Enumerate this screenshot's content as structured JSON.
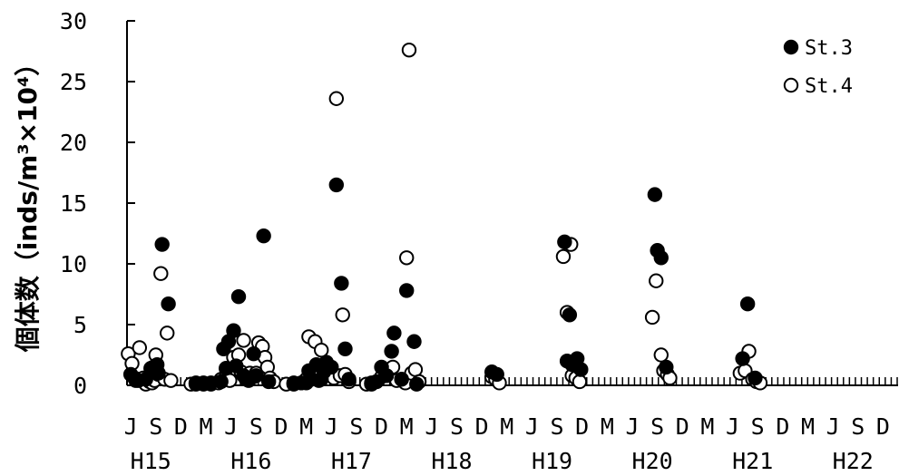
{
  "chart_data": {
    "type": "scatter",
    "ylabel": "個体数（inds/m³×10⁴）",
    "ylim": [
      0,
      30
    ],
    "yticks": [
      0,
      5,
      10,
      15,
      20,
      25,
      30
    ],
    "month_ticks": [
      "J",
      "S",
      "D",
      "M",
      "J",
      "S",
      "D",
      "M",
      "J",
      "S",
      "D",
      "M",
      "J",
      "S",
      "D",
      "M",
      "J",
      "S",
      "D",
      "M",
      "J",
      "S",
      "D",
      "M",
      "J",
      "S",
      "D",
      "M",
      "J",
      "S",
      "D"
    ],
    "year_labels": [
      {
        "label": "H15",
        "month_index": 0.8
      },
      {
        "label": "H16",
        "month_index": 4.8
      },
      {
        "label": "H17",
        "month_index": 8.8
      },
      {
        "label": "H18",
        "month_index": 12.8
      },
      {
        "label": "H19",
        "month_index": 16.8
      },
      {
        "label": "H20",
        "month_index": 20.8
      },
      {
        "label": "H21",
        "month_index": 24.8
      },
      {
        "label": "H22",
        "month_index": 28.8
      }
    ],
    "x_unit": "months since June H15",
    "xlim": [
      -0.15,
      30.6
    ],
    "series": [
      {
        "name": "St.3",
        "marker": "filled",
        "points": [
          [
            0.0,
            0.9
          ],
          [
            0.15,
            0.6
          ],
          [
            0.3,
            0.4
          ],
          [
            0.6,
            0.5
          ],
          [
            0.8,
            1.4
          ],
          [
            0.9,
            1.5
          ],
          [
            1.0,
            1.3
          ],
          [
            1.05,
            1.7
          ],
          [
            1.1,
            1.0
          ],
          [
            1.25,
            11.6
          ],
          [
            1.5,
            6.7
          ],
          [
            2.6,
            0.2
          ],
          [
            2.9,
            0.2
          ],
          [
            3.2,
            0.2
          ],
          [
            3.6,
            0.3
          ],
          [
            3.7,
            3.0
          ],
          [
            3.8,
            1.4
          ],
          [
            3.9,
            3.6
          ],
          [
            4.1,
            4.5
          ],
          [
            4.2,
            1.6
          ],
          [
            4.3,
            7.3
          ],
          [
            4.5,
            0.8
          ],
          [
            4.7,
            0.4
          ],
          [
            4.9,
            2.6
          ],
          [
            5.0,
            0.8
          ],
          [
            5.3,
            12.3
          ],
          [
            5.5,
            0.3
          ],
          [
            6.5,
            0.2
          ],
          [
            6.8,
            0.2
          ],
          [
            7.0,
            0.2
          ],
          [
            7.1,
            1.2
          ],
          [
            7.2,
            0.5
          ],
          [
            7.4,
            1.7
          ],
          [
            7.5,
            0.4
          ],
          [
            7.6,
            0.5
          ],
          [
            7.7,
            1.1
          ],
          [
            7.8,
            1.9
          ],
          [
            8.0,
            1.5
          ],
          [
            8.2,
            16.5
          ],
          [
            8.4,
            8.4
          ],
          [
            8.55,
            3.0
          ],
          [
            8.7,
            0.5
          ],
          [
            9.6,
            0.2
          ],
          [
            9.8,
            0.3
          ],
          [
            10.0,
            1.5
          ],
          [
            10.2,
            0.8
          ],
          [
            10.4,
            2.8
          ],
          [
            10.5,
            4.3
          ],
          [
            10.8,
            0.5
          ],
          [
            11.0,
            7.8
          ],
          [
            11.3,
            3.6
          ],
          [
            11.4,
            0.1
          ],
          [
            14.4,
            1.1
          ],
          [
            14.6,
            0.9
          ],
          [
            17.3,
            11.8
          ],
          [
            17.4,
            2.0
          ],
          [
            17.5,
            5.8
          ],
          [
            17.6,
            1.7
          ],
          [
            17.8,
            2.2
          ],
          [
            17.95,
            1.3
          ],
          [
            20.9,
            15.7
          ],
          [
            21.0,
            11.1
          ],
          [
            21.15,
            10.5
          ],
          [
            21.35,
            1.5
          ],
          [
            24.4,
            2.2
          ],
          [
            24.6,
            6.7
          ],
          [
            24.9,
            0.6
          ]
        ]
      },
      {
        "name": "St.4",
        "marker": "open",
        "points": [
          [
            -0.1,
            2.6
          ],
          [
            0.05,
            1.8
          ],
          [
            0.2,
            0.4
          ],
          [
            0.35,
            3.1
          ],
          [
            0.5,
            0.6
          ],
          [
            0.6,
            0.1
          ],
          [
            0.75,
            0.3
          ],
          [
            0.85,
            0.2
          ],
          [
            0.95,
            0.4
          ],
          [
            1.0,
            2.5
          ],
          [
            1.1,
            0.9
          ],
          [
            1.2,
            9.2
          ],
          [
            1.35,
            0.5
          ],
          [
            1.45,
            4.3
          ],
          [
            1.6,
            0.4
          ],
          [
            2.4,
            0.1
          ],
          [
            2.6,
            0.1
          ],
          [
            2.9,
            0.1
          ],
          [
            3.2,
            0.1
          ],
          [
            3.5,
            0.2
          ],
          [
            3.6,
            0.5
          ],
          [
            3.8,
            0.7
          ],
          [
            3.95,
            0.4
          ],
          [
            4.1,
            2.3
          ],
          [
            4.3,
            2.5
          ],
          [
            4.4,
            1.1
          ],
          [
            4.5,
            3.7
          ],
          [
            4.6,
            0.5
          ],
          [
            4.75,
            1.0
          ],
          [
            4.9,
            0.7
          ],
          [
            5.0,
            1.0
          ],
          [
            5.1,
            3.5
          ],
          [
            5.25,
            3.2
          ],
          [
            5.35,
            2.3
          ],
          [
            5.45,
            1.5
          ],
          [
            5.55,
            0.6
          ],
          [
            5.7,
            0.3
          ],
          [
            6.2,
            0.1
          ],
          [
            6.5,
            0.1
          ],
          [
            6.8,
            0.2
          ],
          [
            7.0,
            0.5
          ],
          [
            7.1,
            4.0
          ],
          [
            7.2,
            0.9
          ],
          [
            7.35,
            3.6
          ],
          [
            7.5,
            1.1
          ],
          [
            7.6,
            2.9
          ],
          [
            7.75,
            1.3
          ],
          [
            7.9,
            0.9
          ],
          [
            8.1,
            0.6
          ],
          [
            8.2,
            23.6
          ],
          [
            8.35,
            0.8
          ],
          [
            8.45,
            5.8
          ],
          [
            8.55,
            0.9
          ],
          [
            8.7,
            0.3
          ],
          [
            9.4,
            0.1
          ],
          [
            9.6,
            0.1
          ],
          [
            9.8,
            0.3
          ],
          [
            10.0,
            0.7
          ],
          [
            10.15,
            1.1
          ],
          [
            10.3,
            1.3
          ],
          [
            10.45,
            1.5
          ],
          [
            10.6,
            0.4
          ],
          [
            10.8,
            0.5
          ],
          [
            10.95,
            0.2
          ],
          [
            11.0,
            10.5
          ],
          [
            11.1,
            27.6
          ],
          [
            11.2,
            1.0
          ],
          [
            11.35,
            1.3
          ],
          [
            11.5,
            0.3
          ],
          [
            14.4,
            0.7
          ],
          [
            14.55,
            0.5
          ],
          [
            14.7,
            0.2
          ],
          [
            17.25,
            10.6
          ],
          [
            17.4,
            6.0
          ],
          [
            17.55,
            11.6
          ],
          [
            17.6,
            0.8
          ],
          [
            17.75,
            0.6
          ],
          [
            17.9,
            0.3
          ],
          [
            20.8,
            5.6
          ],
          [
            20.95,
            8.6
          ],
          [
            21.15,
            2.5
          ],
          [
            21.25,
            1.2
          ],
          [
            21.4,
            0.9
          ],
          [
            21.5,
            0.6
          ],
          [
            24.3,
            1.0
          ],
          [
            24.5,
            1.2
          ],
          [
            24.65,
            2.8
          ],
          [
            24.8,
            0.5
          ],
          [
            24.95,
            0.3
          ],
          [
            25.1,
            0.2
          ]
        ]
      }
    ],
    "legend": {
      "placement": "top-right",
      "entries": [
        "St.3",
        "St.4"
      ]
    }
  }
}
